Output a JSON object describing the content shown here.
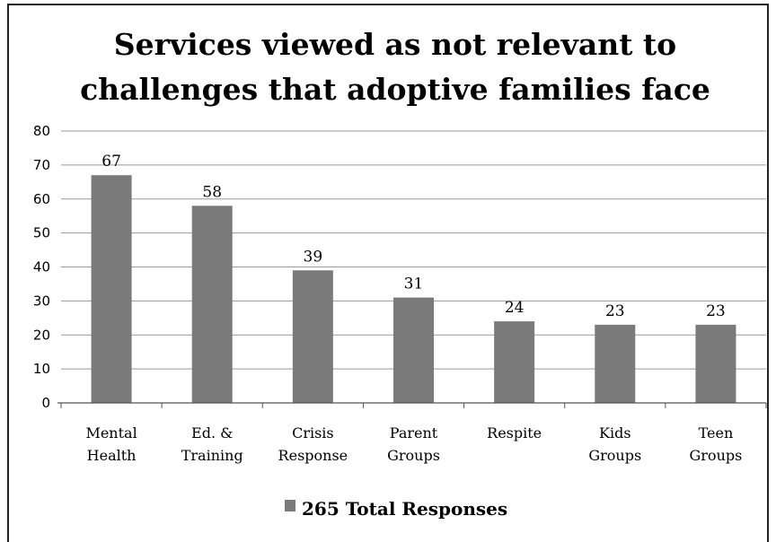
{
  "chart_data": {
    "type": "bar",
    "title_lines": [
      "Services viewed as not relevant to",
      "challenges that adoptive families face"
    ],
    "categories": [
      [
        "Mental",
        "Health"
      ],
      [
        "Ed. &",
        "Training"
      ],
      [
        "Crisis",
        "Response"
      ],
      [
        "Parent",
        "Groups"
      ],
      [
        "Respite"
      ],
      [
        "Kids",
        "Groups"
      ],
      [
        "Teen",
        "Groups"
      ]
    ],
    "series": [
      {
        "name": "265 Total Responses",
        "values": [
          67,
          58,
          39,
          31,
          24,
          23,
          23
        ]
      }
    ],
    "ylim": [
      0,
      80
    ],
    "yticks": [
      "0",
      "10",
      "20",
      "30",
      "40",
      "50",
      "60",
      "70",
      "80"
    ],
    "grid": true,
    "legend": "bottom",
    "bar_color": "#7a7a7a",
    "grid_color": "#999999",
    "axis_color": "#555555"
  }
}
